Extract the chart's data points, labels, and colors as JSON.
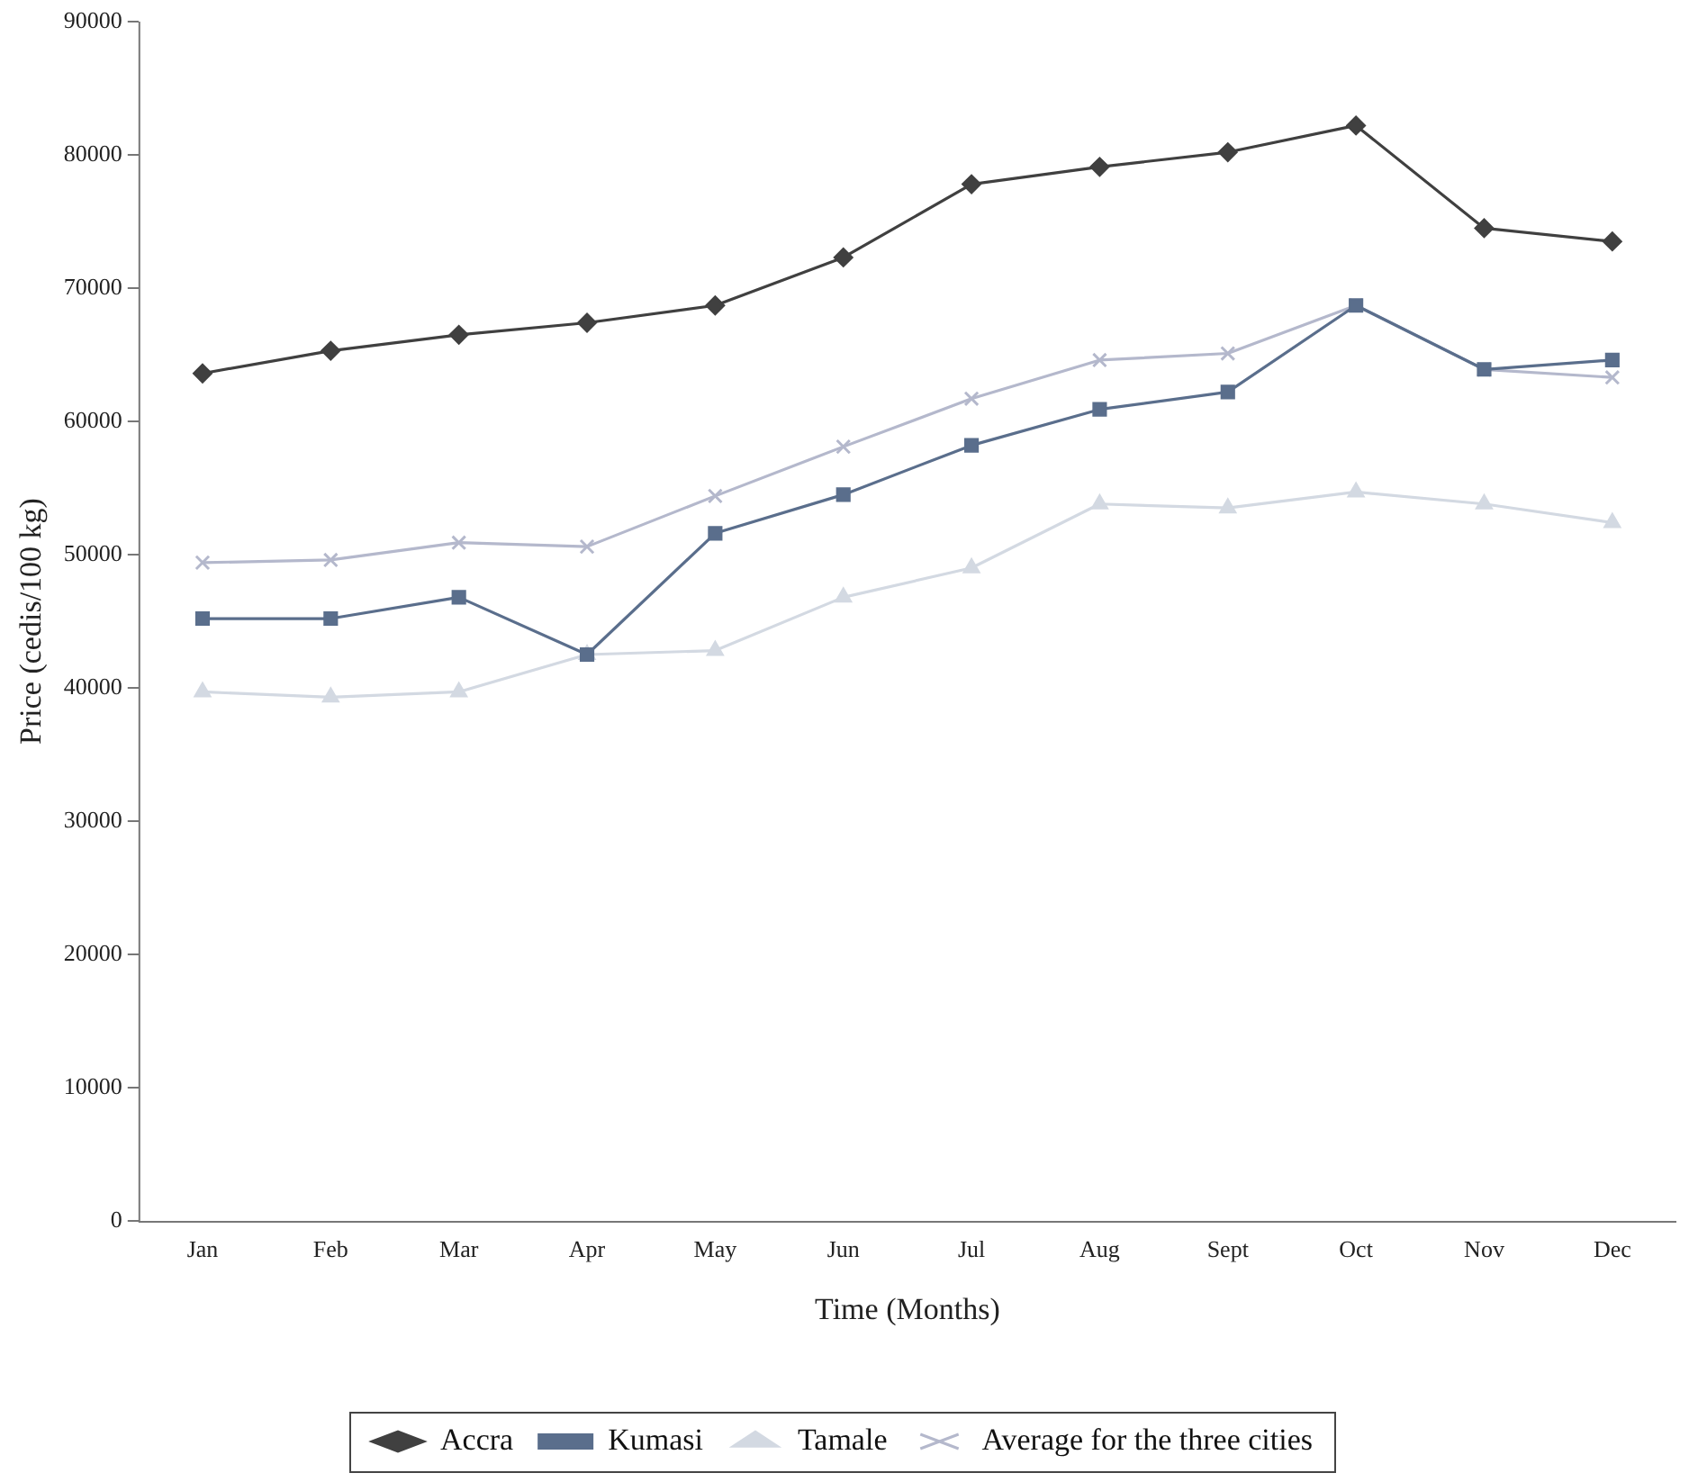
{
  "chart_data": {
    "type": "line",
    "xlabel": "Time (Months)",
    "ylabel": "Price (cedis/100 kg)",
    "categories": [
      "Jan",
      "Feb",
      "Mar",
      "Apr",
      "May",
      "Jun",
      "Jul",
      "Aug",
      "Sept",
      "Oct",
      "Nov",
      "Dec"
    ],
    "series": [
      {
        "name": "Accra",
        "color": "#404040",
        "marker": "diamond",
        "values": [
          63600,
          65300,
          66500,
          67400,
          68700,
          72300,
          77800,
          79100,
          80200,
          82200,
          74500,
          73500
        ]
      },
      {
        "name": "Kumasi",
        "color": "#5a6e8c",
        "marker": "square",
        "values": [
          45200,
          45200,
          46800,
          42500,
          51600,
          54500,
          58200,
          60900,
          62200,
          68700,
          63900,
          64600
        ]
      },
      {
        "name": "Tamale",
        "color": "#d3d9e2",
        "marker": "triangle",
        "values": [
          39700,
          39300,
          39700,
          42500,
          42800,
          46800,
          49000,
          53800,
          53500,
          54700,
          53800,
          52400
        ]
      },
      {
        "name": "Average for the three cities",
        "color": "#b4b8cc",
        "marker": "cross",
        "values": [
          49400,
          49600,
          50900,
          50600,
          54400,
          58100,
          61700,
          64600,
          65100,
          68700,
          63900,
          63300
        ]
      }
    ],
    "ylim": [
      0,
      90000
    ],
    "yticks": [
      0,
      10000,
      20000,
      30000,
      40000,
      50000,
      60000,
      70000,
      80000,
      90000
    ],
    "grid": false,
    "legend": "bottom",
    "line_style": "solid"
  }
}
